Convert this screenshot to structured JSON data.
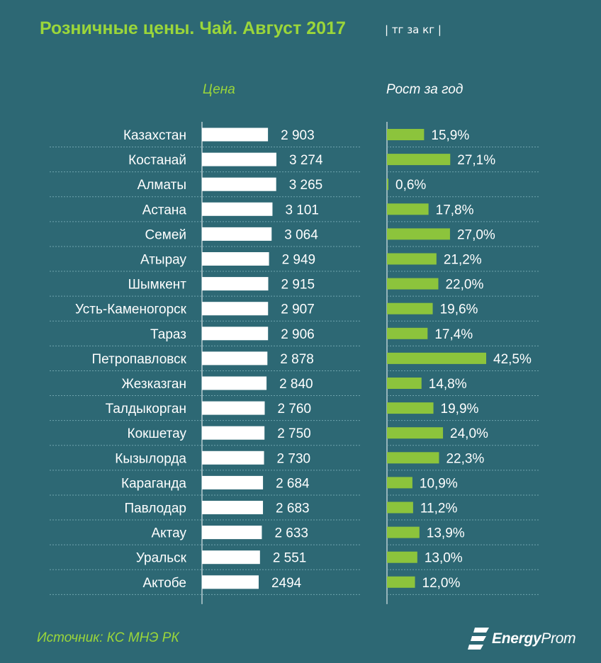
{
  "header": {
    "title": "Розничные цены. Чай. Август 2017",
    "unit": "| тг за кг |"
  },
  "chart_data": [
    {
      "type": "bar",
      "orientation": "horizontal",
      "title": "Цена",
      "categories": [
        "Казахстан",
        "Костанай",
        "Алматы",
        "Астана",
        "Семей",
        "Атырау",
        "Шымкент",
        "Усть-Каменогорск",
        "Тараз",
        "Петропавловск",
        "Жезказган",
        "Талдыкорган",
        "Кокшетау",
        "Кызылорда",
        "Караганда",
        "Павлодар",
        "Актау",
        "Уральск",
        "Актобе"
      ],
      "values": [
        2903,
        3274,
        3265,
        3101,
        3064,
        2949,
        2915,
        2907,
        2906,
        2878,
        2840,
        2760,
        2750,
        2730,
        2684,
        2683,
        2633,
        2551,
        2494
      ],
      "value_labels": [
        "2 903",
        "3 274",
        "3 265",
        "3 101",
        "3 064",
        "2 949",
        "2 915",
        "2 907",
        "2 906",
        "2 878",
        "2 840",
        "2 760",
        "2 750",
        "2 730",
        "2 684",
        "2 683",
        "2 633",
        "2 551",
        "2494"
      ],
      "color": "#ffffff"
    },
    {
      "type": "bar",
      "orientation": "horizontal",
      "title": "Рост за год",
      "categories": [
        "Казахстан",
        "Костанай",
        "Алматы",
        "Астана",
        "Семей",
        "Атырау",
        "Шымкент",
        "Усть-Каменогорск",
        "Тараз",
        "Петропавловск",
        "Жезказган",
        "Талдыкорган",
        "Кокшетау",
        "Кызылорда",
        "Караганда",
        "Павлодар",
        "Актау",
        "Уральск",
        "Актобе"
      ],
      "values": [
        15.9,
        27.1,
        0.6,
        17.8,
        27.0,
        21.2,
        22.0,
        19.6,
        17.4,
        42.5,
        14.8,
        19.9,
        24.0,
        22.3,
        10.9,
        11.2,
        13.9,
        13.0,
        12.0
      ],
      "value_labels": [
        "15,9%",
        "27,1%",
        "0,6%",
        "17,8%",
        "27,0%",
        "21,2%",
        "22,0%",
        "19,6%",
        "17,4%",
        "42,5%",
        "14,8%",
        "19,9%",
        "24,0%",
        "22,3%",
        "10,9%",
        "11,2%",
        "13,9%",
        "13,0%",
        "12,0%"
      ],
      "color": "#8cc43c"
    }
  ],
  "footer": {
    "source": "Источник: КС МНЭ РК",
    "logo_bold": "Energy",
    "logo_light": "Prom"
  },
  "colors": {
    "background": "#2d6874",
    "accent": "#9bd63a",
    "price_bar": "#ffffff",
    "growth_bar": "#8cc43c",
    "gridline": "#6fa3ad"
  },
  "icons": {
    "logo": "energyprom-logo-icon"
  }
}
